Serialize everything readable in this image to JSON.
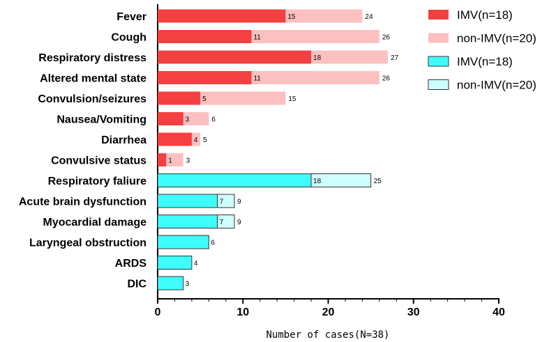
{
  "chart_data": {
    "type": "bar",
    "orientation": "horizontal",
    "stacked": true,
    "title": "",
    "xlabel": "Number of cases(N=38)",
    "ylabel": "",
    "xlim": [
      0,
      40
    ],
    "xticks": [
      0,
      10,
      20,
      30,
      40
    ],
    "grid": false,
    "legend_position": "top-right",
    "categories": [
      "Fever",
      "Cough",
      "Respiratory distress",
      "Altered mental state",
      "Convulsion/seizures",
      "Nausea/Vomiting",
      "Diarrhea",
      "Convulsive status",
      "Respiratory faliure",
      "Acute brain dysfunction",
      "Myocardial damage",
      "Laryngeal obstruction",
      "ARDS",
      "DIC"
    ],
    "groups": [
      {
        "name": "symptoms",
        "categories": [
          "Fever",
          "Cough",
          "Respiratory distress",
          "Altered mental state",
          "Convulsion/seizures",
          "Nausea/Vomiting",
          "Diarrhea",
          "Convulsive status"
        ],
        "imv_values": [
          15,
          11,
          18,
          11,
          5,
          3,
          4,
          1
        ],
        "total_values": [
          24,
          26,
          27,
          26,
          15,
          6,
          5,
          3
        ],
        "imv_color": "#f44040",
        "non_imv_color": "#fcc0c0",
        "edge": "none"
      },
      {
        "name": "complications",
        "categories": [
          "Respiratory faliure",
          "Acute brain dysfunction",
          "Myocardial damage",
          "Laryngeal obstruction",
          "ARDS",
          "DIC"
        ],
        "imv_values": [
          18,
          7,
          7,
          6,
          4,
          3
        ],
        "total_values": [
          25,
          9,
          9,
          null,
          null,
          null
        ],
        "imv_color": "#3ffdfd",
        "non_imv_color": "#cffefe",
        "edge": "#333333"
      }
    ],
    "value_labels": [
      [
        "15",
        "24"
      ],
      [
        "11",
        "26"
      ],
      [
        "18",
        "27"
      ],
      [
        "11",
        "26"
      ],
      [
        "5",
        "15"
      ],
      [
        "3",
        "6"
      ],
      [
        "4",
        "5"
      ],
      [
        "1",
        "3"
      ],
      [
        "18",
        "25"
      ],
      [
        "7",
        "9"
      ],
      [
        "7",
        "9"
      ],
      [
        "6"
      ],
      [
        "4"
      ],
      [
        "3"
      ]
    ],
    "legend": [
      {
        "label": "IMV(n=18)",
        "color": "#f44040",
        "edge": "none"
      },
      {
        "label": "non-IMV(n=20)",
        "color": "#fcc0c0",
        "edge": "none"
      },
      {
        "label": "IMV(n=18)",
        "color": "#3ffdfd",
        "edge": "#333333"
      },
      {
        "label": "non-IMV(n=20)",
        "color": "#cffefe",
        "edge": "#333333"
      }
    ]
  }
}
